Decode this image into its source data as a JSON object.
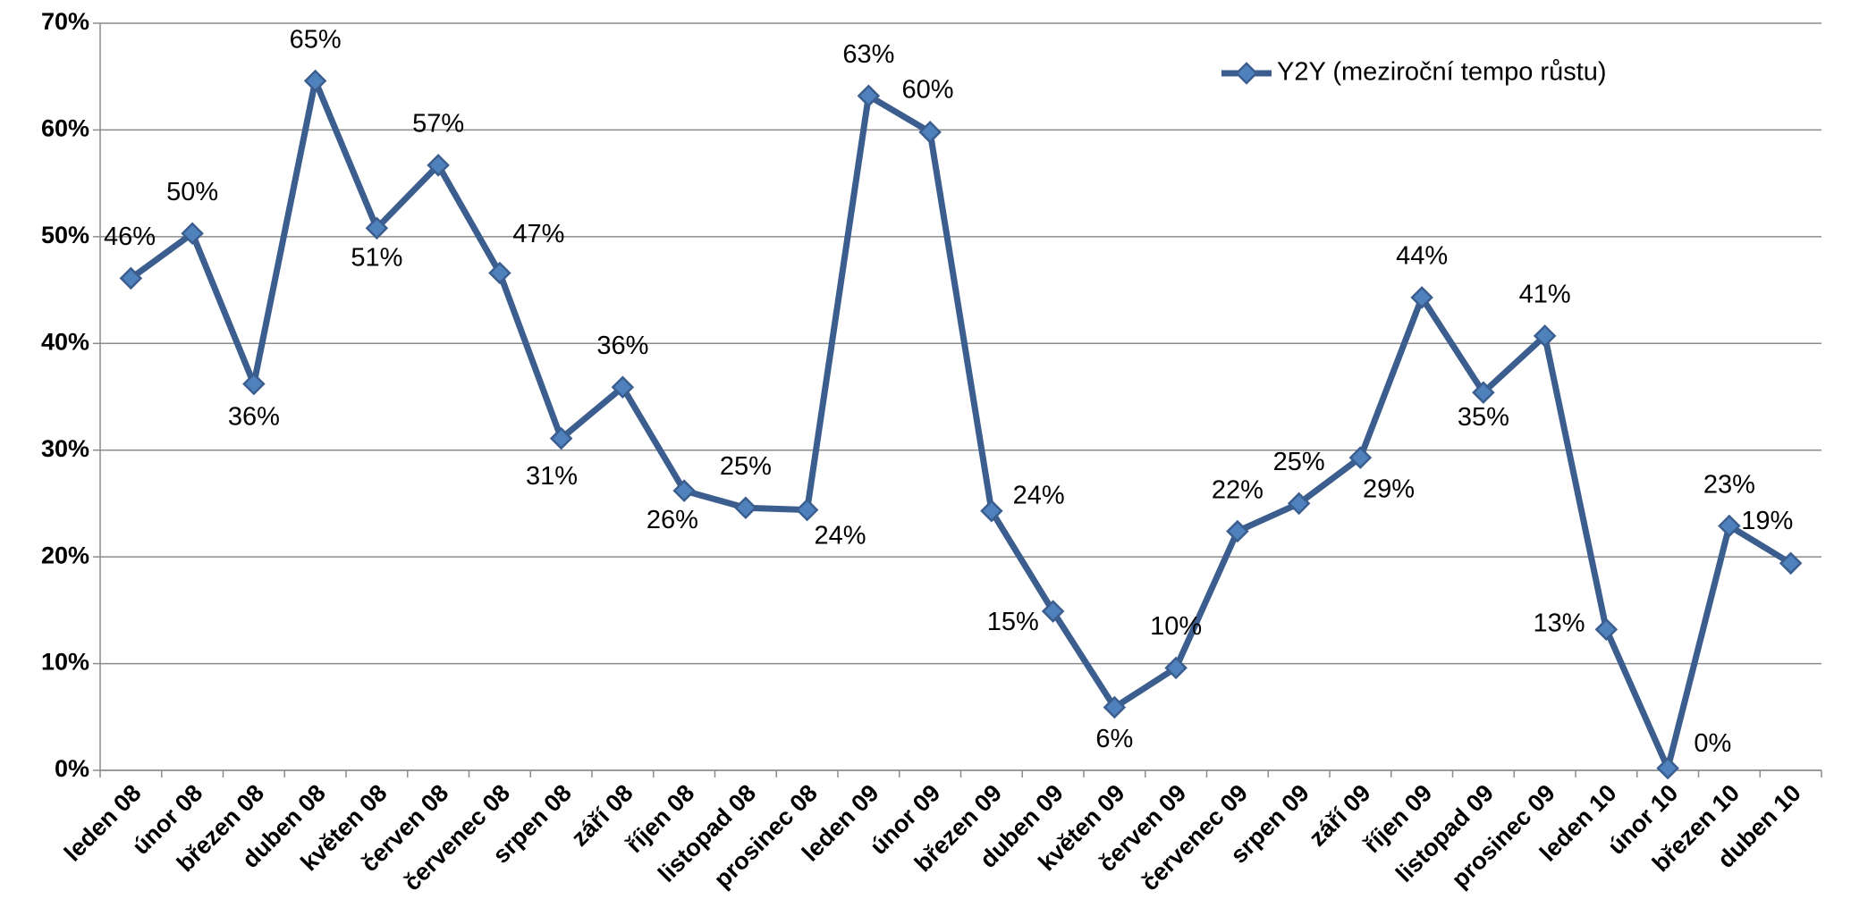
{
  "chart_data": {
    "type": "line",
    "categories": [
      "leden 08",
      "únor 08",
      "březen 08",
      "duben 08",
      "květen 08",
      "červen 08",
      "červenec 08",
      "srpen 08",
      "září 08",
      "říjen 08",
      "listopad 08",
      "prosinec 08",
      "leden 09",
      "únor 09",
      "březen 09",
      "duben 09",
      "květen 09",
      "červen 09",
      "červenec 09",
      "srpen 09",
      "září 09",
      "říjen 09",
      "listopad 09",
      "prosinec 09",
      "leden 10",
      "únor 10",
      "březen 10",
      "duben 10"
    ],
    "series": [
      {
        "name": "Y2Y (meziroční tempo růstu)",
        "color": "#3b5e8f",
        "values": [
          46.1,
          50.3,
          36.2,
          64.6,
          50.8,
          56.7,
          46.6,
          31.1,
          35.9,
          26.2,
          24.6,
          24.4,
          63.2,
          59.8,
          24.3,
          14.9,
          5.9,
          9.6,
          22.4,
          25.0,
          29.3,
          44.3,
          35.4,
          40.7,
          13.2,
          0.2,
          22.9,
          19.4
        ],
        "value_labels": [
          "46%",
          "50%",
          "36%",
          "65%",
          "51%",
          "57%",
          "47%",
          "31%",
          "36%",
          "26%",
          "25%",
          "24%",
          "63%",
          "60%",
          "24%",
          "15%",
          "6%",
          "10%",
          "22%",
          "25%",
          "29%",
          "44%",
          "35%",
          "41%",
          "13%",
          "0%",
          "23%",
          "19%"
        ]
      }
    ],
    "ylim": [
      0,
      70
    ],
    "yticks": [
      {
        "value": 0,
        "label": "0%"
      },
      {
        "value": 10,
        "label": "10%"
      },
      {
        "value": 20,
        "label": "20%"
      },
      {
        "value": 30,
        "label": "30%"
      },
      {
        "value": 40,
        "label": "40%"
      },
      {
        "value": 50,
        "label": "50%"
      },
      {
        "value": 60,
        "label": "60%"
      },
      {
        "value": 70,
        "label": "70%"
      }
    ],
    "grid": true,
    "legend": "top-right"
  }
}
